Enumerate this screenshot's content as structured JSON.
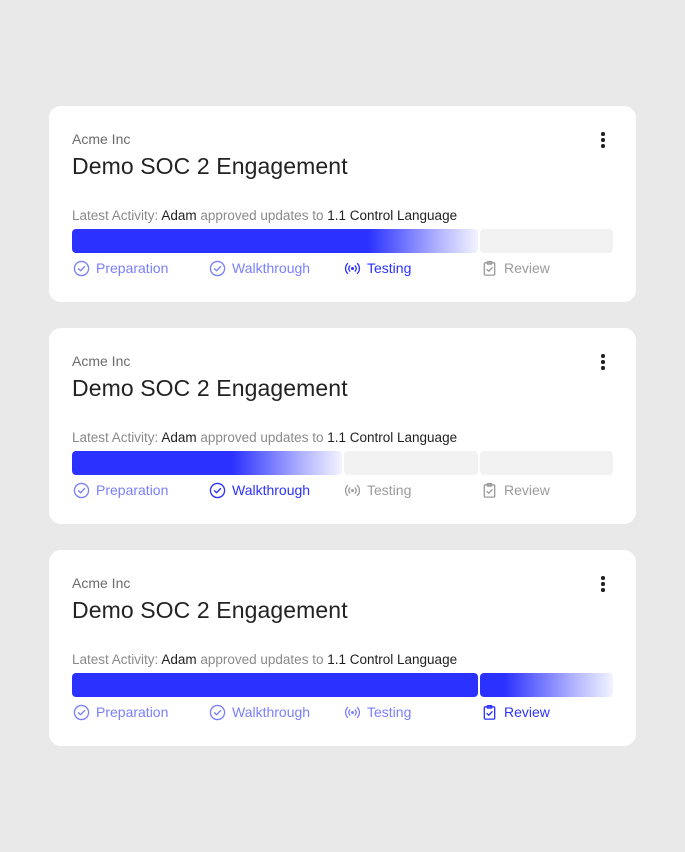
{
  "colors": {
    "background": "#e9e9e9",
    "card": "#ffffff",
    "accent": "#2b31ff",
    "done": "#7a7ffb",
    "pending": "#9b9b9b",
    "track": "#f2f2f2"
  },
  "icons": {
    "preparation": "check-circle-icon",
    "walkthrough": "check-circle-icon",
    "testing": "broadcast-icon",
    "review": "clipboard-check-icon",
    "menu": "more-vertical-icon"
  },
  "cards": [
    {
      "org": "Acme Inc",
      "title": "Demo SOC 2 Engagement",
      "activity": {
        "prefix": "Latest Activity:",
        "user": "Adam",
        "action": "approved updates to",
        "item": "1.1 Control Language"
      },
      "current_step": "Testing",
      "steps": [
        {
          "label": "Preparation",
          "state": "done"
        },
        {
          "label": "Walkthrough",
          "state": "done"
        },
        {
          "label": "Testing",
          "state": "active"
        },
        {
          "label": "Review",
          "state": "todo"
        }
      ]
    },
    {
      "org": "Acme Inc",
      "title": "Demo SOC 2 Engagement",
      "activity": {
        "prefix": "Latest Activity:",
        "user": "Adam",
        "action": "approved updates to",
        "item": "1.1 Control Language"
      },
      "current_step": "Walkthrough",
      "steps": [
        {
          "label": "Preparation",
          "state": "done"
        },
        {
          "label": "Walkthrough",
          "state": "active"
        },
        {
          "label": "Testing",
          "state": "todo"
        },
        {
          "label": "Review",
          "state": "todo"
        }
      ]
    },
    {
      "org": "Acme Inc",
      "title": "Demo SOC 2 Engagement",
      "activity": {
        "prefix": "Latest Activity:",
        "user": "Adam",
        "action": "approved updates to",
        "item": "1.1 Control Language"
      },
      "current_step": "Review",
      "steps": [
        {
          "label": "Preparation",
          "state": "done"
        },
        {
          "label": "Walkthrough",
          "state": "done"
        },
        {
          "label": "Testing",
          "state": "done"
        },
        {
          "label": "Review",
          "state": "active"
        }
      ]
    }
  ]
}
